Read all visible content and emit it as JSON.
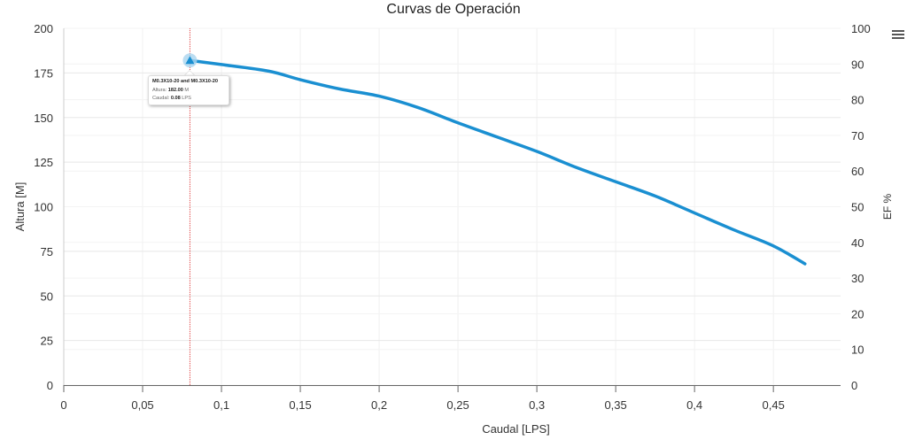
{
  "chart_data": {
    "type": "line",
    "title": "Curvas de Operación",
    "xlabel": "Caudal [LPS]",
    "ylabel": "Altura [M]",
    "y2label": "EF %",
    "xlim": [
      0,
      0.4926
    ],
    "ylim": [
      0,
      200
    ],
    "y2lim": [
      0,
      100
    ],
    "x_ticks": [
      0,
      0.05,
      0.1,
      0.15,
      0.2,
      0.25,
      0.3,
      0.35,
      0.4,
      0.45
    ],
    "x_tick_labels": [
      "0",
      "0,05",
      "0,1",
      "0,15",
      "0,2",
      "0,25",
      "0,3",
      "0,35",
      "0,4",
      "0,45"
    ],
    "y_ticks": [
      0,
      25,
      50,
      75,
      100,
      125,
      150,
      175,
      200
    ],
    "y2_ticks": [
      0,
      10,
      20,
      30,
      40,
      50,
      60,
      70,
      80,
      90,
      100
    ],
    "grid": true,
    "legend": "none",
    "series": [
      {
        "name": "M0.3X10-20",
        "color": "#1a8fd1",
        "axis": "left",
        "x": [
          0.08,
          0.1,
          0.13,
          0.15,
          0.175,
          0.2,
          0.225,
          0.25,
          0.275,
          0.3,
          0.325,
          0.35,
          0.375,
          0.4,
          0.425,
          0.45,
          0.47
        ],
        "y": [
          182,
          179.7,
          176,
          171.2,
          166,
          162,
          155.5,
          147,
          139,
          131,
          122,
          114,
          106,
          96.5,
          87,
          78,
          68
        ]
      }
    ],
    "annotations": [
      {
        "type": "vertical-line",
        "x": 0.08,
        "color": "#e04040",
        "style": "dotted"
      }
    ],
    "tooltip": {
      "x": 0.08,
      "y": 182,
      "series_line": "M0.3X10-20 and M0.3X10-20",
      "altura_label": "Altura: ",
      "altura_value": "182.00",
      "altura_unit": " M",
      "caudal_label": "Caudal: ",
      "caudal_value": "0.08",
      "caudal_unit": " LPS"
    }
  },
  "menu": {
    "icon": "hamburger-menu-icon"
  },
  "colors": {
    "line": "#1a8fd1",
    "marker_halo": "#a9d4ef",
    "crosshair": "#e04040",
    "grid": "#e8e8e8",
    "axis": "#666666"
  }
}
